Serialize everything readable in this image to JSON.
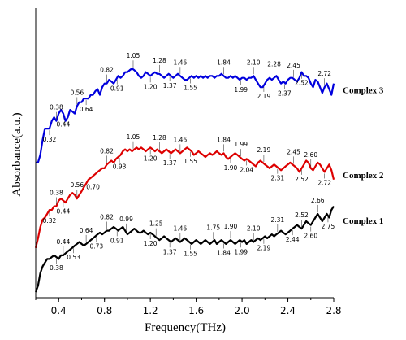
{
  "chart_data": {
    "type": "line",
    "xlabel": "Frequency(THz)",
    "ylabel": "Absorbance(a.u.)",
    "xlim": [
      0.2,
      2.8
    ],
    "ylim": [
      0,
      1
    ],
    "xticks": [
      "0.4",
      "0.8",
      "1.2",
      "1.6",
      "2.0",
      "2.4",
      "2.8"
    ],
    "yticks_shown": false,
    "series": [
      {
        "name": "Complex 3",
        "color": "#0000dd",
        "peaks": [
          "0.32",
          "0.38",
          "0.44",
          "0.56",
          "0.64",
          "0.82",
          "0.91",
          "1.05",
          "1.20",
          "1.28",
          "1.37",
          "1.46",
          "1.55",
          "1.84",
          "1.99",
          "2.10",
          "2.19",
          "2.28",
          "2.37",
          "2.45",
          "2.52",
          "2.72"
        ],
        "x": [
          0.2,
          0.22,
          0.24,
          0.26,
          0.28,
          0.3,
          0.32,
          0.34,
          0.36,
          0.38,
          0.4,
          0.42,
          0.44,
          0.46,
          0.48,
          0.5,
          0.52,
          0.54,
          0.56,
          0.58,
          0.6,
          0.62,
          0.64,
          0.66,
          0.68,
          0.7,
          0.72,
          0.74,
          0.76,
          0.78,
          0.8,
          0.82,
          0.84,
          0.86,
          0.88,
          0.9,
          0.92,
          0.94,
          0.96,
          0.98,
          1.0,
          1.02,
          1.04,
          1.06,
          1.08,
          1.1,
          1.12,
          1.14,
          1.16,
          1.18,
          1.2,
          1.22,
          1.24,
          1.26,
          1.28,
          1.3,
          1.32,
          1.34,
          1.36,
          1.38,
          1.4,
          1.42,
          1.44,
          1.46,
          1.48,
          1.5,
          1.52,
          1.54,
          1.56,
          1.58,
          1.6,
          1.62,
          1.64,
          1.66,
          1.68,
          1.7,
          1.72,
          1.74,
          1.76,
          1.78,
          1.8,
          1.82,
          1.84,
          1.86,
          1.88,
          1.9,
          1.92,
          1.94,
          1.96,
          1.98,
          2.0,
          2.02,
          2.04,
          2.06,
          2.08,
          2.1,
          2.12,
          2.14,
          2.16,
          2.18,
          2.2,
          2.22,
          2.24,
          2.26,
          2.28,
          2.3,
          2.32,
          2.34,
          2.36,
          2.38,
          2.4,
          2.42,
          2.44,
          2.46,
          2.48,
          2.5,
          2.52,
          2.54,
          2.56,
          2.58,
          2.6,
          2.62,
          2.64,
          2.66,
          2.68,
          2.7,
          2.72,
          2.74,
          2.76,
          2.78,
          2.8
        ],
        "y": [
          0.525,
          0.525,
          0.556,
          0.617,
          0.663,
          0.663,
          0.663,
          0.694,
          0.709,
          0.694,
          0.724,
          0.739,
          0.724,
          0.694,
          0.709,
          0.739,
          0.732,
          0.724,
          0.754,
          0.77,
          0.77,
          0.785,
          0.785,
          0.785,
          0.8,
          0.8,
          0.815,
          0.823,
          0.8,
          0.831,
          0.846,
          0.846,
          0.861,
          0.854,
          0.846,
          0.861,
          0.877,
          0.869,
          0.877,
          0.892,
          0.892,
          0.9,
          0.907,
          0.9,
          0.892,
          0.877,
          0.869,
          0.877,
          0.892,
          0.885,
          0.877,
          0.885,
          0.892,
          0.885,
          0.885,
          0.877,
          0.869,
          0.877,
          0.885,
          0.877,
          0.869,
          0.877,
          0.885,
          0.877,
          0.869,
          0.861,
          0.861,
          0.869,
          0.877,
          0.869,
          0.877,
          0.869,
          0.877,
          0.869,
          0.877,
          0.869,
          0.877,
          0.877,
          0.869,
          0.877,
          0.877,
          0.885,
          0.877,
          0.869,
          0.869,
          0.877,
          0.869,
          0.877,
          0.869,
          0.861,
          0.869,
          0.869,
          0.861,
          0.869,
          0.869,
          0.877,
          0.861,
          0.846,
          0.831,
          0.831,
          0.846,
          0.861,
          0.869,
          0.861,
          0.869,
          0.877,
          0.861,
          0.846,
          0.854,
          0.846,
          0.861,
          0.869,
          0.869,
          0.861,
          0.854,
          0.869,
          0.892,
          0.877,
          0.877,
          0.869,
          0.846,
          0.831,
          0.861,
          0.854,
          0.831,
          0.808,
          0.831,
          0.846,
          0.823,
          0.8,
          0.846
        ]
      },
      {
        "name": "Complex 2",
        "color": "#dd0000",
        "peaks": [
          "0.32",
          "0.38",
          "0.44",
          "0.56",
          "0.70",
          "0.82",
          "0.93",
          "1.05",
          "1.20",
          "1.28",
          "1.37",
          "1.46",
          "1.55",
          "1.84",
          "1.90",
          "1.99",
          "2.04",
          "2.19",
          "2.31",
          "2.45",
          "2.52",
          "2.60",
          "2.72"
        ],
        "x": [
          0.2,
          0.22,
          0.24,
          0.26,
          0.28,
          0.3,
          0.32,
          0.34,
          0.36,
          0.38,
          0.4,
          0.42,
          0.44,
          0.46,
          0.48,
          0.5,
          0.52,
          0.54,
          0.56,
          0.58,
          0.6,
          0.62,
          0.64,
          0.66,
          0.68,
          0.7,
          0.72,
          0.74,
          0.76,
          0.78,
          0.8,
          0.82,
          0.84,
          0.86,
          0.88,
          0.9,
          0.92,
          0.94,
          0.96,
          0.98,
          1.0,
          1.02,
          1.04,
          1.06,
          1.08,
          1.1,
          1.12,
          1.14,
          1.16,
          1.18,
          1.2,
          1.22,
          1.24,
          1.26,
          1.28,
          1.3,
          1.32,
          1.34,
          1.36,
          1.38,
          1.4,
          1.42,
          1.44,
          1.46,
          1.48,
          1.5,
          1.52,
          1.54,
          1.56,
          1.58,
          1.6,
          1.62,
          1.64,
          1.66,
          1.68,
          1.7,
          1.72,
          1.74,
          1.76,
          1.78,
          1.8,
          1.82,
          1.84,
          1.86,
          1.88,
          1.9,
          1.92,
          1.94,
          1.96,
          1.98,
          2.0,
          2.02,
          2.04,
          2.06,
          2.08,
          2.1,
          2.12,
          2.14,
          2.16,
          2.18,
          2.2,
          2.22,
          2.24,
          2.26,
          2.28,
          2.3,
          2.32,
          2.34,
          2.36,
          2.38,
          2.4,
          2.42,
          2.44,
          2.46,
          2.48,
          2.5,
          2.52,
          2.54,
          2.56,
          2.58,
          2.6,
          2.62,
          2.64,
          2.66,
          2.68,
          2.7,
          2.72,
          2.74,
          2.76,
          2.78,
          2.8
        ],
        "y": [
          0.179,
          0.217,
          0.263,
          0.294,
          0.302,
          0.317,
          0.333,
          0.333,
          0.348,
          0.348,
          0.371,
          0.379,
          0.371,
          0.363,
          0.379,
          0.394,
          0.402,
          0.394,
          0.379,
          0.394,
          0.409,
          0.425,
          0.44,
          0.456,
          0.463,
          0.471,
          0.479,
          0.487,
          0.494,
          0.502,
          0.502,
          0.517,
          0.525,
          0.533,
          0.525,
          0.54,
          0.548,
          0.556,
          0.571,
          0.579,
          0.571,
          0.579,
          0.571,
          0.579,
          0.586,
          0.579,
          0.586,
          0.579,
          0.571,
          0.579,
          0.586,
          0.579,
          0.571,
          0.579,
          0.571,
          0.563,
          0.571,
          0.579,
          0.571,
          0.563,
          0.571,
          0.579,
          0.571,
          0.563,
          0.571,
          0.579,
          0.586,
          0.579,
          0.571,
          0.556,
          0.563,
          0.571,
          0.563,
          0.556,
          0.548,
          0.556,
          0.563,
          0.556,
          0.563,
          0.571,
          0.563,
          0.556,
          0.563,
          0.548,
          0.54,
          0.548,
          0.556,
          0.563,
          0.556,
          0.548,
          0.54,
          0.533,
          0.54,
          0.533,
          0.525,
          0.517,
          0.51,
          0.525,
          0.533,
          0.525,
          0.517,
          0.51,
          0.502,
          0.51,
          0.517,
          0.51,
          0.502,
          0.494,
          0.502,
          0.51,
          0.517,
          0.525,
          0.517,
          0.51,
          0.502,
          0.487,
          0.502,
          0.517,
          0.533,
          0.525,
          0.502,
          0.494,
          0.51,
          0.525,
          0.517,
          0.502,
          0.487,
          0.502,
          0.517,
          0.494,
          0.456
        ]
      },
      {
        "name": "Complex 1",
        "color": "#000000",
        "peaks": [
          "0.38",
          "0.44",
          "0.53",
          "0.64",
          "0.73",
          "0.82",
          "0.91",
          "0.99",
          "1.20",
          "1.25",
          "1.37",
          "1.46",
          "1.55",
          "1.75",
          "1.84",
          "1.90",
          "1.99",
          "2.10",
          "2.19",
          "2.31",
          "2.44",
          "2.52",
          "2.60",
          "2.66",
          "2.75"
        ],
        "x": [
          0.2,
          0.22,
          0.24,
          0.26,
          0.28,
          0.3,
          0.32,
          0.34,
          0.36,
          0.38,
          0.4,
          0.42,
          0.44,
          0.46,
          0.48,
          0.5,
          0.52,
          0.54,
          0.56,
          0.58,
          0.6,
          0.62,
          0.64,
          0.66,
          0.68,
          0.7,
          0.72,
          0.74,
          0.76,
          0.78,
          0.8,
          0.82,
          0.84,
          0.86,
          0.88,
          0.9,
          0.92,
          0.94,
          0.96,
          0.98,
          1.0,
          1.02,
          1.04,
          1.06,
          1.08,
          1.1,
          1.12,
          1.14,
          1.16,
          1.18,
          1.2,
          1.22,
          1.24,
          1.26,
          1.28,
          1.3,
          1.32,
          1.34,
          1.36,
          1.38,
          1.4,
          1.42,
          1.44,
          1.46,
          1.48,
          1.5,
          1.52,
          1.54,
          1.56,
          1.58,
          1.6,
          1.62,
          1.64,
          1.66,
          1.68,
          1.7,
          1.72,
          1.74,
          1.76,
          1.78,
          1.8,
          1.82,
          1.84,
          1.86,
          1.88,
          1.9,
          1.92,
          1.94,
          1.96,
          1.98,
          2.0,
          2.02,
          2.04,
          2.06,
          2.08,
          2.1,
          2.12,
          2.14,
          2.16,
          2.18,
          2.2,
          2.22,
          2.24,
          2.26,
          2.28,
          2.3,
          2.32,
          2.34,
          2.36,
          2.38,
          2.4,
          2.42,
          2.44,
          2.46,
          2.48,
          2.5,
          2.52,
          2.54,
          2.56,
          2.58,
          2.6,
          2.62,
          2.64,
          2.66,
          2.68,
          2.7,
          2.72,
          2.74,
          2.76,
          2.78,
          2.8
        ],
        "y": [
          0.0,
          0.025,
          0.076,
          0.104,
          0.119,
          0.134,
          0.134,
          0.142,
          0.149,
          0.142,
          0.134,
          0.149,
          0.149,
          0.157,
          0.165,
          0.172,
          0.18,
          0.188,
          0.195,
          0.203,
          0.195,
          0.188,
          0.195,
          0.203,
          0.211,
          0.218,
          0.226,
          0.234,
          0.241,
          0.234,
          0.241,
          0.249,
          0.249,
          0.257,
          0.264,
          0.257,
          0.249,
          0.257,
          0.264,
          0.249,
          0.234,
          0.241,
          0.249,
          0.257,
          0.249,
          0.241,
          0.241,
          0.249,
          0.241,
          0.234,
          0.241,
          0.234,
          0.226,
          0.218,
          0.211,
          0.218,
          0.226,
          0.218,
          0.211,
          0.203,
          0.211,
          0.218,
          0.211,
          0.203,
          0.211,
          0.218,
          0.211,
          0.203,
          0.195,
          0.203,
          0.211,
          0.203,
          0.195,
          0.203,
          0.211,
          0.203,
          0.195,
          0.203,
          0.211,
          0.195,
          0.203,
          0.211,
          0.203,
          0.195,
          0.203,
          0.211,
          0.203,
          0.195,
          0.203,
          0.211,
          0.203,
          0.211,
          0.195,
          0.203,
          0.211,
          0.203,
          0.211,
          0.218,
          0.211,
          0.218,
          0.226,
          0.218,
          0.226,
          0.234,
          0.226,
          0.234,
          0.241,
          0.249,
          0.241,
          0.234,
          0.241,
          0.249,
          0.257,
          0.264,
          0.272,
          0.264,
          0.257,
          0.272,
          0.287,
          0.279,
          0.272,
          0.287,
          0.302,
          0.317,
          0.302,
          0.287,
          0.302,
          0.317,
          0.302,
          0.333,
          0.348
        ]
      }
    ]
  }
}
